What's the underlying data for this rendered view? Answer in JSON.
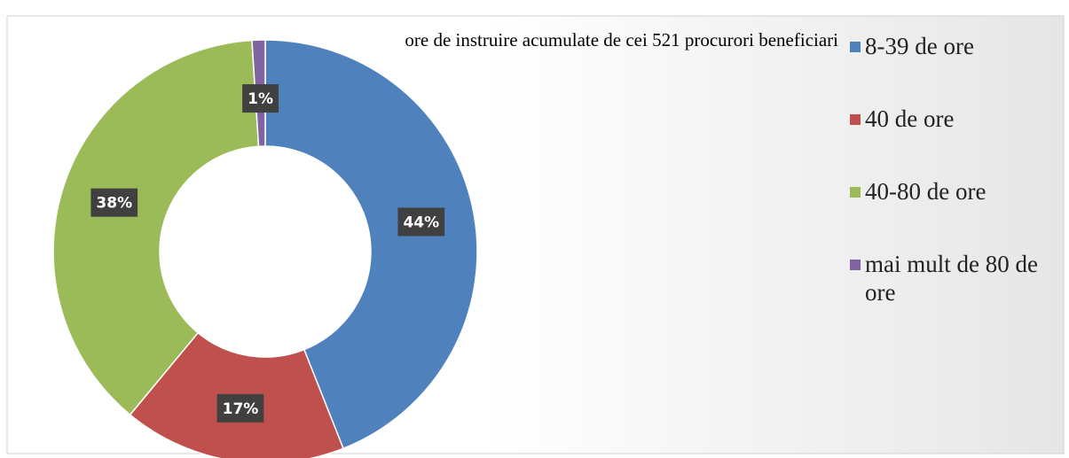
{
  "chart_data": {
    "type": "donut",
    "title": "ore de instruire acumulate de cei 521 procurori beneficiari",
    "categories": [
      "8-39 de ore",
      "40 de ore",
      "40-80 de ore",
      "mai mult de 80 de ore"
    ],
    "values": [
      44,
      17,
      38,
      1
    ],
    "value_labels": [
      "44%",
      "17%",
      "38%",
      "1%"
    ],
    "colors": [
      "#4f81bd",
      "#c0504d",
      "#9bbb59",
      "#8064a2"
    ],
    "legend": "right"
  }
}
